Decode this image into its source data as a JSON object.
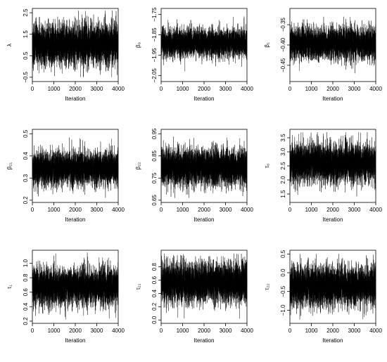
{
  "chart_data": [
    {
      "type": "line",
      "title": "",
      "xlabel": "Iteration",
      "ylabel": "λ",
      "xlim": [
        0,
        4000
      ],
      "ylim": [
        -0.7,
        2.7
      ],
      "xticks": [
        0,
        1000,
        2000,
        3000,
        4000
      ],
      "yticks": [
        -0.5,
        0.5,
        1.5,
        2.5
      ],
      "series": [
        {
          "n": 4000,
          "mean": 1.0,
          "sd": 0.48,
          "min": -0.5,
          "max": 2.6
        }
      ]
    },
    {
      "type": "line",
      "title": "",
      "xlabel": "Iteration",
      "ylabel": "β₀",
      "xlim": [
        0,
        4000
      ],
      "ylim": [
        -2.08,
        -1.72
      ],
      "xticks": [
        0,
        1000,
        2000,
        3000,
        4000
      ],
      "yticks": [
        -2.05,
        -1.95,
        -1.85,
        -1.75
      ],
      "series": [
        {
          "n": 4000,
          "mean": -1.89,
          "sd": 0.035,
          "min": -2.03,
          "max": -1.74
        }
      ]
    },
    {
      "type": "line",
      "title": "",
      "xlabel": "Iteration",
      "ylabel": "β₁",
      "xlim": [
        0,
        4000
      ],
      "ylim": [
        -0.49,
        -0.31
      ],
      "xticks": [
        0,
        1000,
        2000,
        3000,
        4000
      ],
      "yticks": [
        -0.45,
        -0.4,
        -0.35
      ],
      "series": [
        {
          "n": 4000,
          "mean": -0.396,
          "sd": 0.02,
          "min": -0.47,
          "max": -0.33
        }
      ]
    },
    {
      "type": "line",
      "title": "",
      "xlabel": "Iteration",
      "ylabel": "β₂₁",
      "xlim": [
        0,
        4000
      ],
      "ylim": [
        0.19,
        0.52
      ],
      "xticks": [
        0,
        1000,
        2000,
        3000,
        4000
      ],
      "yticks": [
        0.2,
        0.3,
        0.4,
        0.5
      ],
      "series": [
        {
          "n": 4000,
          "mean": 0.345,
          "sd": 0.04,
          "min": 0.21,
          "max": 0.51
        }
      ]
    },
    {
      "type": "line",
      "title": "",
      "xlabel": "Iteration",
      "ylabel": "β₂₂",
      "xlim": [
        0,
        4000
      ],
      "ylim": [
        0.64,
        0.97
      ],
      "xticks": [
        0,
        1000,
        2000,
        3000,
        4000
      ],
      "yticks": [
        0.65,
        0.75,
        0.85,
        0.95
      ],
      "series": [
        {
          "n": 4000,
          "mean": 0.8,
          "sd": 0.042,
          "min": 0.66,
          "max": 0.96
        }
      ]
    },
    {
      "type": "line",
      "title": "",
      "xlabel": "Iteration",
      "ylabel": "τ₀",
      "xlim": [
        0,
        4000
      ],
      "ylim": [
        1.2,
        3.8
      ],
      "xticks": [
        0,
        1000,
        2000,
        3000,
        4000
      ],
      "yticks": [
        1.5,
        2.0,
        2.5,
        3.0,
        3.5
      ],
      "series": [
        {
          "n": 4000,
          "mean": 2.6,
          "sd": 0.35,
          "min": 1.3,
          "max": 3.7
        }
      ]
    },
    {
      "type": "line",
      "title": "",
      "xlabel": "Iteration",
      "ylabel": "τ₁",
      "xlim": [
        0,
        4000
      ],
      "ylim": [
        0.17,
        1.18
      ],
      "xticks": [
        0,
        1000,
        2000,
        3000,
        4000
      ],
      "yticks": [
        0.2,
        0.4,
        0.6,
        0.8,
        1.0
      ],
      "series": [
        {
          "n": 4000,
          "mean": 0.68,
          "sd": 0.13,
          "min": 0.22,
          "max": 1.15
        }
      ]
    },
    {
      "type": "line",
      "title": "",
      "xlabel": "Iteration",
      "ylabel": "τ₂₁",
      "xlim": [
        0,
        4000
      ],
      "ylim": [
        -0.05,
        1.05
      ],
      "xticks": [
        0,
        1000,
        2000,
        3000,
        4000
      ],
      "yticks": [
        0.0,
        0.2,
        0.4,
        0.6,
        0.8
      ],
      "series": [
        {
          "n": 4000,
          "mean": 0.56,
          "sd": 0.15,
          "min": 0.02,
          "max": 1.0
        }
      ]
    },
    {
      "type": "line",
      "title": "",
      "xlabel": "Iteration",
      "ylabel": "τ₂₂",
      "xlim": [
        0,
        4000
      ],
      "ylim": [
        -1.35,
        0.6
      ],
      "xticks": [
        0,
        1000,
        2000,
        3000,
        4000
      ],
      "yticks": [
        -1.0,
        -0.5,
        0.0,
        0.5
      ],
      "series": [
        {
          "n": 4000,
          "mean": -0.35,
          "sd": 0.27,
          "min": -1.25,
          "max": 0.5
        }
      ]
    }
  ]
}
